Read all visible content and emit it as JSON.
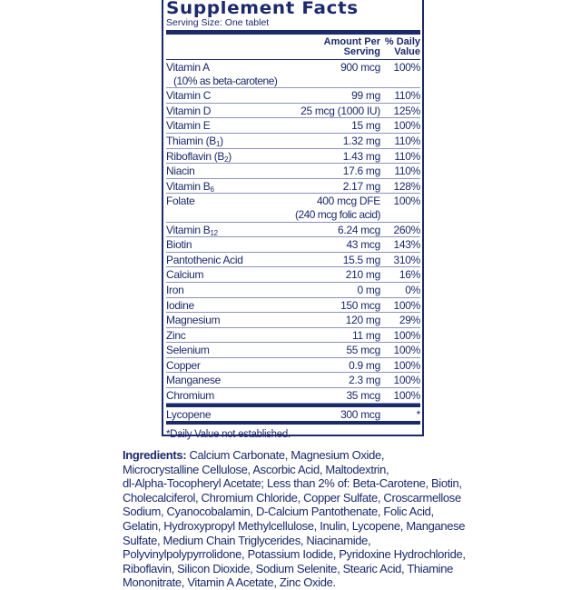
{
  "title": "Supplement Facts",
  "serving_size": "Serving Size: One tablet",
  "header": {
    "amount": "Amount Per",
    "amount2": "Serving",
    "dv": "% Daily",
    "dv2": "Value"
  },
  "rows": [
    {
      "name": "Vitamin A",
      "sub": "",
      "suffix": "",
      "note": "(10% as beta-carotene)",
      "amount": "900 mcg",
      "amount2": "",
      "dv": "100%"
    },
    {
      "name": "Vitamin C",
      "sub": "",
      "suffix": "",
      "amount": "99 mg",
      "dv": "110%"
    },
    {
      "name": "Vitamin D",
      "sub": "",
      "suffix": "",
      "amount": "25 mcg (1000 IU)",
      "dv": "125%"
    },
    {
      "name": "Vitamin E",
      "sub": "",
      "suffix": "",
      "amount": "15 mg",
      "dv": "100%"
    },
    {
      "name": "Thiamin (B",
      "sub": "1",
      "suffix": ")",
      "amount": "1.32 mg",
      "dv": "110%"
    },
    {
      "name": "Riboflavin (B",
      "sub": "2",
      "suffix": ")",
      "amount": "1.43 mg",
      "dv": "110%"
    },
    {
      "name": "Niacin",
      "sub": "",
      "suffix": "",
      "amount": "17.6 mg",
      "dv": "110%"
    },
    {
      "name": "Vitamin B",
      "sub": "6",
      "suffix": "",
      "amount": "2.17 mg",
      "dv": "128%"
    },
    {
      "name": "Folate",
      "sub": "",
      "suffix": "",
      "amount": "400 mcg DFE",
      "amount2": "(240 mcg folic acid)",
      "dv": "100%"
    },
    {
      "name": "Vitamin B",
      "sub": "12",
      "suffix": "",
      "amount": "6.24 mcg",
      "dv": "260%"
    },
    {
      "name": "Biotin",
      "sub": "",
      "suffix": "",
      "amount": "43 mcg",
      "dv": "143%"
    },
    {
      "name": "Pantothenic Acid",
      "sub": "",
      "suffix": "",
      "amount": "15.5 mg",
      "dv": "310%"
    },
    {
      "name": "Calcium",
      "sub": "",
      "suffix": "",
      "amount": "210 mg",
      "dv": "16%"
    },
    {
      "name": "Iron",
      "sub": "",
      "suffix": "",
      "amount": "0 mg",
      "dv": "0%"
    },
    {
      "name": "Iodine",
      "sub": "",
      "suffix": "",
      "amount": "150 mcg",
      "dv": "100%"
    },
    {
      "name": "Magnesium",
      "sub": "",
      "suffix": "",
      "amount": "120 mg",
      "dv": "29%"
    },
    {
      "name": "Zinc",
      "sub": "",
      "suffix": "",
      "amount": "11 mg",
      "dv": "100%"
    },
    {
      "name": "Selenium",
      "sub": "",
      "suffix": "",
      "amount": "55 mcg",
      "dv": "100%"
    },
    {
      "name": "Copper",
      "sub": "",
      "suffix": "",
      "amount": "0.9 mg",
      "dv": "100%"
    },
    {
      "name": "Manganese",
      "sub": "",
      "suffix": "",
      "amount": "2.3 mg",
      "dv": "100%"
    },
    {
      "name": "Chromium",
      "sub": "",
      "suffix": "",
      "amount": "35 mcg",
      "dv": "100%"
    }
  ],
  "other_row": {
    "name": "Lycopene",
    "amount": "300 mcg",
    "dv": "*"
  },
  "footnote": "*Daily Value not established.",
  "ingredients": {
    "label": "Ingredients:",
    "lines": [
      " Calcium Carbonate, Magnesium Oxide,",
      "Microcrystalline Cellulose, Ascorbic Acid, Maltodextrin,",
      "dl-Alpha-Tocopheryl Acetate; Less than 2% of: Beta-Carotene, Biotin,",
      "Cholecalciferol, Chromium Chloride, Copper Sulfate, Croscarmellose",
      "Sodium, Cyanocobalamin, D-Calcium Pantothenate, Folic Acid,",
      "Gelatin, Hydroxypropyl Methylcellulose, Inulin, Lycopene, Manganese",
      "Sulfate, Medium Chain Triglycerides, Niacinamide,",
      "Polyvinylpolypyrrolidone, Potassium Iodide, Pyridoxine Hydrochloride,",
      "Riboflavin, Silicon Dioxide, Sodium Selenite, Stearic Acid, Thiamine",
      "Mononitrate, Vitamin A Acetate, Zinc Oxide."
    ]
  },
  "colors": {
    "ink": "#1b2a6b"
  }
}
